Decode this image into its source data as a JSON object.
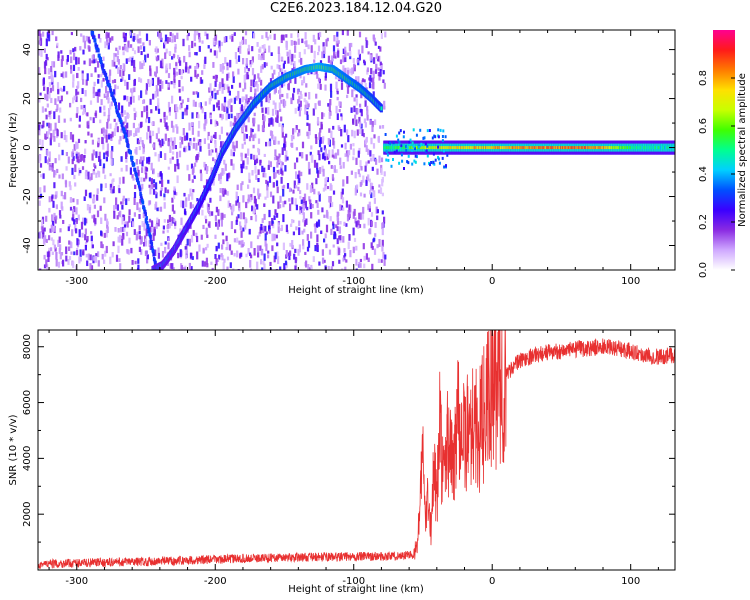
{
  "title": "C2E6.2023.184.12.04.G20",
  "chart_data": [
    {
      "type": "heatmap",
      "xlabel": "Height of straight line (km)",
      "ylabel": "Frequency (Hz)",
      "xlim": [
        -328,
        132
      ],
      "ylim": [
        -50,
        48
      ],
      "xticks": [
        -300,
        -200,
        -100,
        0,
        100
      ],
      "xtick_labels": [
        "-300",
        "-200",
        "-100",
        "0",
        "100"
      ],
      "yticks": [
        -40,
        -20,
        0,
        20,
        40
      ],
      "ytick_labels": [
        "-40",
        "-20",
        "0",
        "20",
        "40"
      ],
      "colorbar": {
        "label": "Normalized spectral amplitude",
        "range": [
          0,
          1
        ],
        "ticks": [
          0.0,
          0.2,
          0.4,
          0.6,
          0.8
        ],
        "tick_labels": [
          "0.0",
          "0.2",
          "0.4",
          "0.6",
          "0.8"
        ],
        "colors": [
          "#ffffff",
          "#cfa8ff",
          "#8a2be2",
          "#3a00ff",
          "#0050ff",
          "#00d0ff",
          "#00ff90",
          "#40ff00",
          "#c8ff00",
          "#ffe000",
          "#ff7a00",
          "#ff1a1a",
          "#ff0090"
        ]
      },
      "noise_region_x": [
        -328,
        -78
      ],
      "trace": [
        {
          "x": -245,
          "y": -50,
          "a": 0.28
        },
        {
          "x": -238,
          "y": -48,
          "a": 0.3
        },
        {
          "x": -230,
          "y": -42,
          "a": 0.3
        },
        {
          "x": -222,
          "y": -34,
          "a": 0.32
        },
        {
          "x": -212,
          "y": -24,
          "a": 0.35
        },
        {
          "x": -202,
          "y": -12,
          "a": 0.38
        },
        {
          "x": -195,
          "y": -2,
          "a": 0.4
        },
        {
          "x": -185,
          "y": 8,
          "a": 0.42
        },
        {
          "x": -172,
          "y": 18,
          "a": 0.45
        },
        {
          "x": -160,
          "y": 25,
          "a": 0.48
        },
        {
          "x": -148,
          "y": 29,
          "a": 0.5
        },
        {
          "x": -135,
          "y": 32,
          "a": 0.52
        },
        {
          "x": -125,
          "y": 33,
          "a": 0.55
        },
        {
          "x": -115,
          "y": 32,
          "a": 0.52
        },
        {
          "x": -105,
          "y": 28,
          "a": 0.5
        },
        {
          "x": -95,
          "y": 24,
          "a": 0.48
        },
        {
          "x": -87,
          "y": 20,
          "a": 0.45
        },
        {
          "x": -80,
          "y": 16,
          "a": 0.42
        }
      ],
      "descending_trace": [
        {
          "x": -290,
          "y": 48
        },
        {
          "x": -280,
          "y": 30
        },
        {
          "x": -268,
          "y": 10
        },
        {
          "x": -258,
          "y": -10
        },
        {
          "x": -250,
          "y": -30
        },
        {
          "x": -243,
          "y": -50
        }
      ],
      "carrier_line": {
        "y": 0,
        "x_start": -78,
        "x_end": 132,
        "amplitude": [
          {
            "x": -78,
            "a": 0.5
          },
          {
            "x": -60,
            "a": 0.6
          },
          {
            "x": -40,
            "a": 0.7
          },
          {
            "x": -20,
            "a": 0.75
          },
          {
            "x": 0,
            "a": 0.78
          },
          {
            "x": 30,
            "a": 0.82
          },
          {
            "x": 60,
            "a": 0.85
          },
          {
            "x": 80,
            "a": 0.8
          },
          {
            "x": 100,
            "a": 0.5
          },
          {
            "x": 132,
            "a": 0.45
          }
        ]
      }
    },
    {
      "type": "line",
      "xlabel": "Height of straight line (km)",
      "ylabel": "SNR (10 * v/v)",
      "xlim": [
        -328,
        132
      ],
      "ylim": [
        0,
        8600
      ],
      "xticks": [
        -300,
        -200,
        -100,
        0,
        100
      ],
      "xtick_labels": [
        "-300",
        "-200",
        "-100",
        "0",
        "100"
      ],
      "yticks": [
        2000,
        4000,
        6000,
        8000
      ],
      "ytick_labels": [
        "2000",
        "4000",
        "6000",
        "8000"
      ],
      "color": "#e83030",
      "series": [
        {
          "x": [
            -328,
            -300,
            -250,
            -200,
            -150,
            -100,
            -70,
            -57,
            -54,
            -52,
            -50,
            -48,
            -46,
            -44,
            -42,
            -40,
            -38,
            -35,
            -32,
            -28,
            -25,
            -20,
            -15,
            -10,
            -5,
            0,
            5,
            10,
            15,
            20,
            25,
            30,
            40,
            50,
            60,
            70,
            80,
            90,
            100,
            110,
            120,
            132
          ],
          "y": [
            200,
            250,
            300,
            380,
            450,
            480,
            500,
            550,
            900,
            2500,
            4200,
            1500,
            3200,
            1200,
            3800,
            2200,
            5400,
            3000,
            4800,
            3500,
            6000,
            4500,
            5500,
            4800,
            5800,
            6300,
            6600,
            7000,
            7300,
            7500,
            7600,
            7700,
            7800,
            7850,
            7900,
            7950,
            8000,
            7950,
            7850,
            7700,
            7650,
            7700
          ]
        }
      ]
    }
  ]
}
